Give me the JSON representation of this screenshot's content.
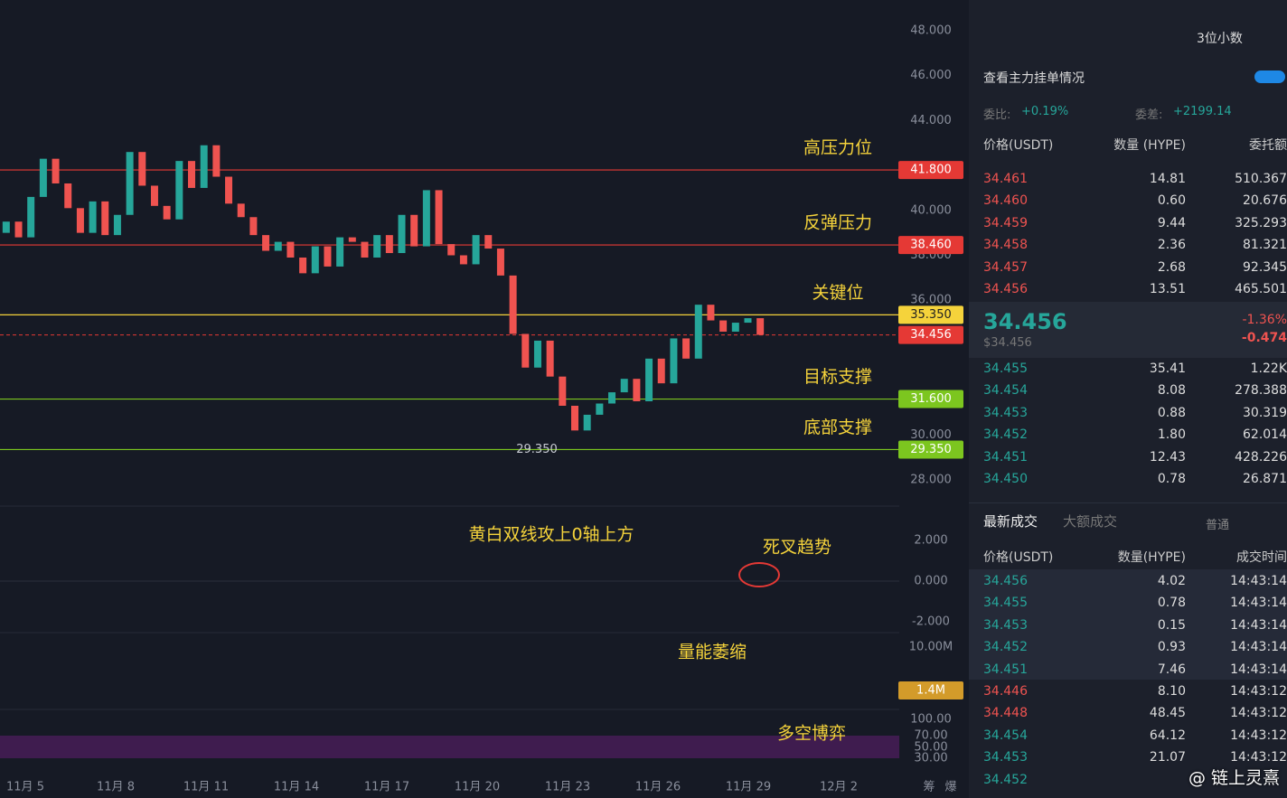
{
  "chart": {
    "price_axis": {
      "ylim": [
        28,
        48
      ],
      "ticks": [
        {
          "value": 48,
          "label": "48.000"
        },
        {
          "value": 46,
          "label": "46.000"
        },
        {
          "value": 44,
          "label": "44.000"
        },
        {
          "value": 40,
          "label": "40.000"
        },
        {
          "value": 38,
          "label": "38.000"
        },
        {
          "value": 36,
          "label": "36.000"
        },
        {
          "value": 30,
          "label": "30.000"
        },
        {
          "value": 28,
          "label": "28.000"
        }
      ]
    },
    "levels": [
      {
        "value": 41.8,
        "label": "41.800",
        "name": "高压力位",
        "color": "#e53935"
      },
      {
        "value": 38.46,
        "label": "38.460",
        "name": "反弹压力",
        "color": "#e53935"
      },
      {
        "value": 35.35,
        "label": "35.350",
        "name": "关键位",
        "color": "#f5d33b"
      },
      {
        "value": 31.6,
        "label": "31.600",
        "name": "目标支撑",
        "color": "#7cc61f"
      },
      {
        "value": 29.35,
        "label": "29.350",
        "name": "底部支撑",
        "color": "#7cc61f"
      }
    ],
    "current": {
      "value": 34.456,
      "label": "34.456",
      "color": "#e53935"
    },
    "low_label": "29.350",
    "first_open": 39.0,
    "closes": [
      39.5,
      38.8,
      40.6,
      42.3,
      41.2,
      40.1,
      39.0,
      40.4,
      38.9,
      39.8,
      42.6,
      41.1,
      40.2,
      39.6,
      42.2,
      41.0,
      42.9,
      41.5,
      40.3,
      39.7,
      38.9,
      38.2,
      38.6,
      37.9,
      37.2,
      38.4,
      37.5,
      38.8,
      38.6,
      37.9,
      38.9,
      38.1,
      39.8,
      38.4,
      40.9,
      38.5,
      38.0,
      37.6,
      38.9,
      38.3,
      37.1,
      34.5,
      33.0,
      34.2,
      32.6,
      31.3,
      30.2,
      30.9,
      31.4,
      31.9,
      32.5,
      31.5,
      33.4,
      32.3,
      34.3,
      33.4,
      35.8,
      35.1,
      34.6,
      35.0,
      35.2,
      34.456
    ],
    "macd_labels": [
      "2.000",
      "0.000",
      "-2.000"
    ],
    "volume_labels": [
      "10.00M",
      "1.4M"
    ],
    "rsi_labels": [
      "100.00",
      "70.00",
      "50.00",
      "30.00"
    ],
    "annotations": [
      "黄白双线攻上0轴上方",
      "死叉趋势",
      "量能萎缩",
      "多空博弈"
    ],
    "dates": [
      "11月 5",
      "11月 8",
      "11月 11",
      "11月 14",
      "11月 17",
      "11月 20",
      "11月 23",
      "11月 26",
      "11月 29",
      "12月 2"
    ],
    "corner": [
      "筹",
      "爆"
    ]
  },
  "panel": {
    "decimals": "3位小数",
    "main_orders": "查看主力挂单情况",
    "ratio_label": "委比:",
    "ratio": "+0.19%",
    "diff_label": "委差:",
    "diff": "+2199.14",
    "book_headers": [
      "价格(USDT)",
      "数量 (HYPE)",
      "委托额"
    ],
    "asks": [
      [
        "34.461",
        "14.81",
        "510.367"
      ],
      [
        "34.460",
        "0.60",
        "20.676"
      ],
      [
        "34.459",
        "9.44",
        "325.293"
      ],
      [
        "34.458",
        "2.36",
        "81.321"
      ],
      [
        "34.457",
        "2.68",
        "92.345"
      ],
      [
        "34.456",
        "13.51",
        "465.501"
      ]
    ],
    "mid": {
      "price": "34.456",
      "usd": "$34.456",
      "pct": "-1.36%",
      "chg": "-0.474"
    },
    "bids": [
      [
        "34.455",
        "35.41",
        "1.22K"
      ],
      [
        "34.454",
        "8.08",
        "278.388"
      ],
      [
        "34.453",
        "0.88",
        "30.319"
      ],
      [
        "34.452",
        "1.80",
        "62.014"
      ],
      [
        "34.451",
        "12.43",
        "428.226"
      ],
      [
        "34.450",
        "0.78",
        "26.871"
      ]
    ],
    "tabs": [
      "最新成交",
      "大额成交"
    ],
    "normal": "普通",
    "trade_headers": [
      "价格(USDT)",
      "数量(HYPE)",
      "成交时间"
    ],
    "trades": [
      {
        "cells": [
          "34.456",
          "4.02",
          "14:43:14"
        ],
        "color": "#26a69a"
      },
      {
        "cells": [
          "34.455",
          "0.78",
          "14:43:14"
        ],
        "color": "#26a69a"
      },
      {
        "cells": [
          "34.453",
          "0.15",
          "14:43:14"
        ],
        "color": "#26a69a"
      },
      {
        "cells": [
          "34.452",
          "0.93",
          "14:43:14"
        ],
        "color": "#26a69a"
      },
      {
        "cells": [
          "34.451",
          "7.46",
          "14:43:14"
        ],
        "color": "#26a69a"
      },
      {
        "cells": [
          "34.446",
          "8.10",
          "14:43:12"
        ],
        "color": "#ef5350"
      },
      {
        "cells": [
          "34.448",
          "48.45",
          "14:43:12"
        ],
        "color": "#ef5350"
      },
      {
        "cells": [
          "34.454",
          "64.12",
          "14:43:12"
        ],
        "color": "#26a69a"
      },
      {
        "cells": [
          "34.453",
          "21.07",
          "14:43:12"
        ],
        "color": "#26a69a"
      },
      {
        "cells": [
          "34.452"
        ],
        "color": "#26a69a"
      }
    ]
  },
  "watermark": "@ 链上灵熹"
}
